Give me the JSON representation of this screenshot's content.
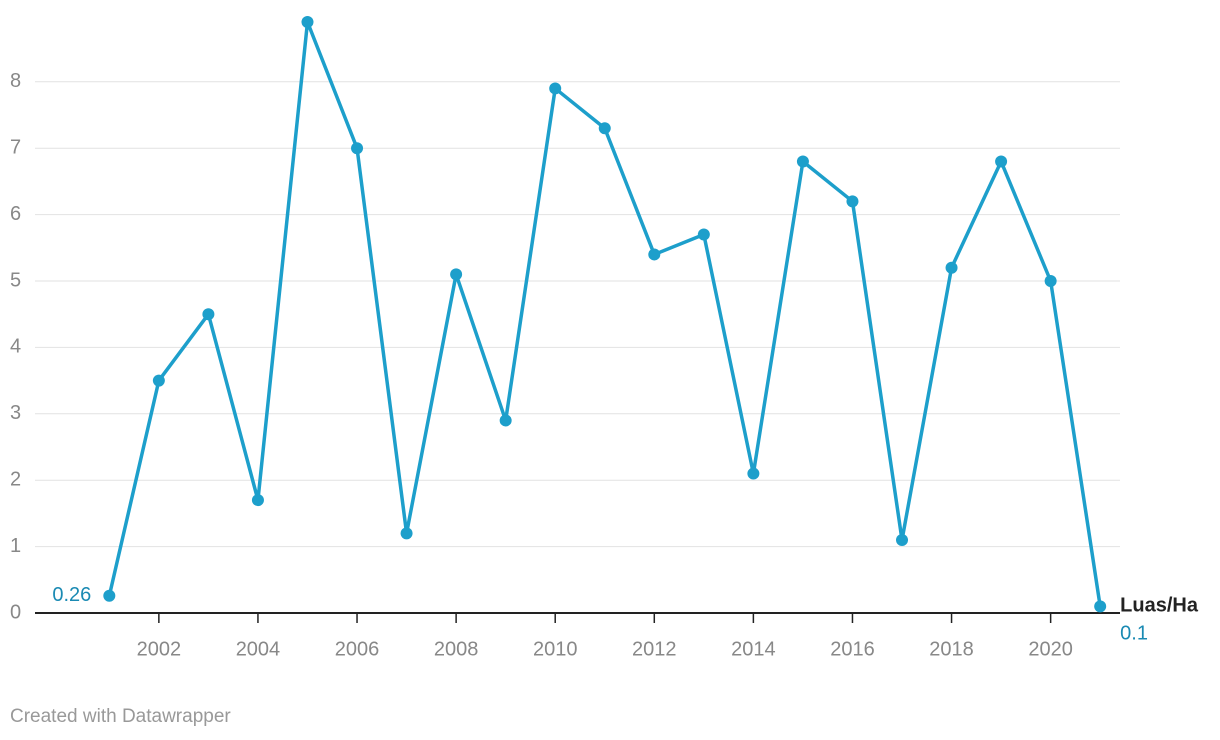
{
  "chart_data": {
    "type": "line",
    "x": [
      2001,
      2002,
      2003,
      2004,
      2005,
      2006,
      2007,
      2008,
      2009,
      2010,
      2011,
      2012,
      2013,
      2014,
      2015,
      2016,
      2017,
      2018,
      2019,
      2020,
      2021
    ],
    "series": [
      {
        "name": "Luas/Ha",
        "color": "#1d9fcb",
        "values": [
          0.26,
          3.5,
          4.5,
          1.7,
          8.9,
          7.0,
          1.2,
          5.1,
          2.9,
          7.9,
          7.3,
          5.4,
          5.7,
          2.1,
          6.8,
          6.2,
          1.1,
          5.2,
          6.8,
          5.0,
          0.1
        ]
      }
    ],
    "xlim": [
      1999.5,
      2021.4
    ],
    "xticks": [
      2002,
      2004,
      2006,
      2008,
      2010,
      2012,
      2014,
      2016,
      2018,
      2020
    ],
    "ylim": [
      0,
      9
    ],
    "yticks": [
      0,
      1,
      2,
      3,
      4,
      5,
      6,
      7,
      8
    ],
    "grid": true,
    "source": "Created with Datawrapper"
  }
}
